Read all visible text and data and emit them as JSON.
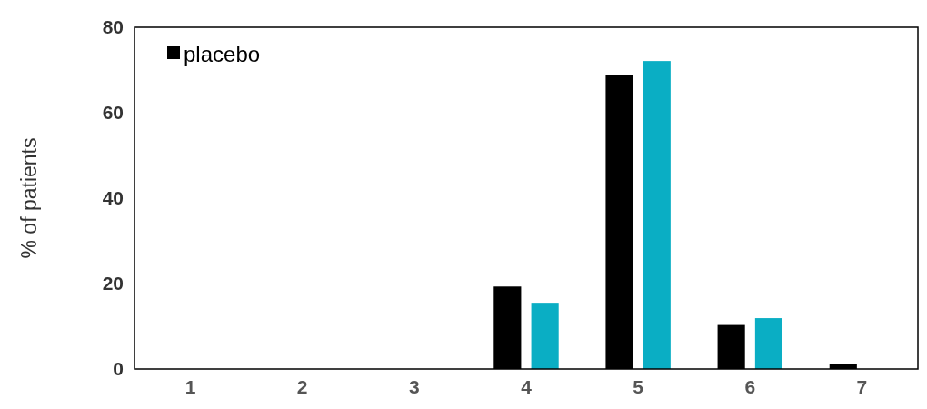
{
  "chart_data": {
    "type": "bar",
    "ylabel": "% of patients",
    "categories": [
      "1",
      "2",
      "3",
      "4",
      "5",
      "6",
      "7"
    ],
    "series": [
      {
        "name": "placebo",
        "color": "#000000",
        "values": [
          0,
          0,
          0,
          19.3,
          68.8,
          10.3,
          1.2
        ]
      },
      {
        "color": "#0aaec4",
        "values": [
          0,
          0,
          0,
          15.5,
          72.1,
          11.9,
          0
        ]
      }
    ],
    "ylim": [
      0,
      80
    ],
    "yticks": [
      0,
      20,
      40,
      60,
      80
    ],
    "legend": "top left"
  }
}
